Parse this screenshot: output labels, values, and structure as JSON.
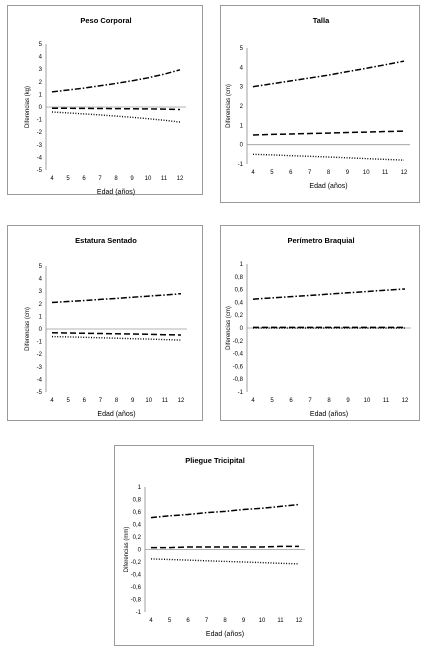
{
  "chart_data": [
    {
      "type": "line",
      "title": "Peso Corporal",
      "xlabel": "Edad (años)",
      "ylabel": "Diferencias (kg)",
      "x": [
        4,
        5,
        6,
        7,
        8,
        9,
        10,
        11,
        12
      ],
      "ylim": [
        -5,
        5
      ],
      "yticks": [
        5,
        4,
        3,
        2,
        1,
        0,
        -1,
        -2,
        -3,
        -4,
        -5
      ],
      "series": [
        {
          "style": "dashdot",
          "values": [
            1.2,
            1.35,
            1.5,
            1.68,
            1.87,
            2.08,
            2.32,
            2.6,
            2.95
          ]
        },
        {
          "style": "dashed",
          "values": [
            -0.1,
            -0.1,
            -0.11,
            -0.12,
            -0.13,
            -0.14,
            -0.15,
            -0.17,
            -0.2
          ]
        },
        {
          "style": "dotted",
          "values": [
            -0.4,
            -0.47,
            -0.55,
            -0.63,
            -0.72,
            -0.82,
            -0.93,
            -1.05,
            -1.2
          ]
        }
      ]
    },
    {
      "type": "line",
      "title": "Talla",
      "xlabel": "Edad (años)",
      "ylabel": "Diferencias (cm)",
      "x": [
        4,
        5,
        6,
        7,
        8,
        9,
        10,
        11,
        12
      ],
      "ylim": [
        -1,
        5
      ],
      "yticks": [
        5,
        4,
        3,
        2,
        1,
        0,
        -1
      ],
      "series": [
        {
          "style": "dashdot",
          "values": [
            3.0,
            3.15,
            3.3,
            3.45,
            3.6,
            3.78,
            3.95,
            4.13,
            4.32
          ]
        },
        {
          "style": "dashed",
          "values": [
            0.5,
            0.53,
            0.55,
            0.58,
            0.6,
            0.63,
            0.65,
            0.68,
            0.7
          ]
        },
        {
          "style": "dotted",
          "values": [
            -0.5,
            -0.53,
            -0.57,
            -0.6,
            -0.64,
            -0.68,
            -0.72,
            -0.76,
            -0.8
          ]
        }
      ]
    },
    {
      "type": "line",
      "title": "Estatura Sentado",
      "xlabel": "Edad  (años)",
      "ylabel": "Diferencias (cm)",
      "x": [
        4,
        5,
        6,
        7,
        8,
        9,
        10,
        11,
        12
      ],
      "ylim": [
        -5,
        5
      ],
      "yticks": [
        5,
        4,
        3,
        2,
        1,
        0,
        -1,
        -2,
        -3,
        -4,
        -5
      ],
      "series": [
        {
          "style": "dashdot",
          "values": [
            2.1,
            2.18,
            2.26,
            2.35,
            2.43,
            2.52,
            2.61,
            2.7,
            2.8
          ]
        },
        {
          "style": "dashed",
          "values": [
            -0.3,
            -0.32,
            -0.34,
            -0.36,
            -0.38,
            -0.4,
            -0.42,
            -0.45,
            -0.48
          ]
        },
        {
          "style": "dotted",
          "values": [
            -0.6,
            -0.63,
            -0.66,
            -0.7,
            -0.73,
            -0.77,
            -0.8,
            -0.84,
            -0.88
          ]
        }
      ]
    },
    {
      "type": "line",
      "title": "Perímetro Braquial",
      "xlabel": "Edad (años)",
      "ylabel": "Diferencias (cm)",
      "x": [
        4,
        5,
        6,
        7,
        8,
        9,
        10,
        11,
        12
      ],
      "ylim": [
        -1,
        1
      ],
      "yticks": [
        "1",
        "0,8",
        "0,6",
        "0,4",
        "0,2",
        "0",
        "-0,2",
        "-0,4",
        "-0,6",
        "-0,8",
        "-1"
      ],
      "series": [
        {
          "style": "dashdot",
          "values": [
            0.45,
            0.47,
            0.49,
            0.51,
            0.53,
            0.55,
            0.57,
            0.59,
            0.61
          ]
        },
        {
          "style": "dashed",
          "values": [
            0.01,
            0.01,
            0.01,
            0.01,
            0.01,
            0.01,
            0.01,
            0.01,
            0.01
          ]
        },
        {
          "style": "dotted",
          "values": [
            0.0,
            0.0,
            0.0,
            0.0,
            0.0,
            0.0,
            0.0,
            0.0,
            0.0
          ]
        }
      ]
    },
    {
      "type": "line",
      "title": "Pliegue Tricipital",
      "xlabel": "Edad (años)",
      "ylabel": "Diferencias (mm)",
      "x": [
        4,
        5,
        6,
        7,
        8,
        9,
        10,
        11,
        12
      ],
      "ylim": [
        -1,
        1
      ],
      "yticks": [
        "1",
        "0,8",
        "0,6",
        "0,4",
        "0,2",
        "0",
        "-0,2",
        "-0,4",
        "-0,6",
        "-0,8",
        "-1"
      ],
      "series": [
        {
          "style": "dashdot",
          "values": [
            0.51,
            0.54,
            0.56,
            0.59,
            0.61,
            0.64,
            0.66,
            0.69,
            0.72
          ]
        },
        {
          "style": "dashed",
          "values": [
            0.03,
            0.03,
            0.04,
            0.04,
            0.04,
            0.04,
            0.04,
            0.05,
            0.05
          ]
        },
        {
          "style": "dotted",
          "values": [
            -0.15,
            -0.16,
            -0.17,
            -0.18,
            -0.19,
            -0.2,
            -0.21,
            -0.22,
            -0.23
          ]
        }
      ]
    }
  ]
}
